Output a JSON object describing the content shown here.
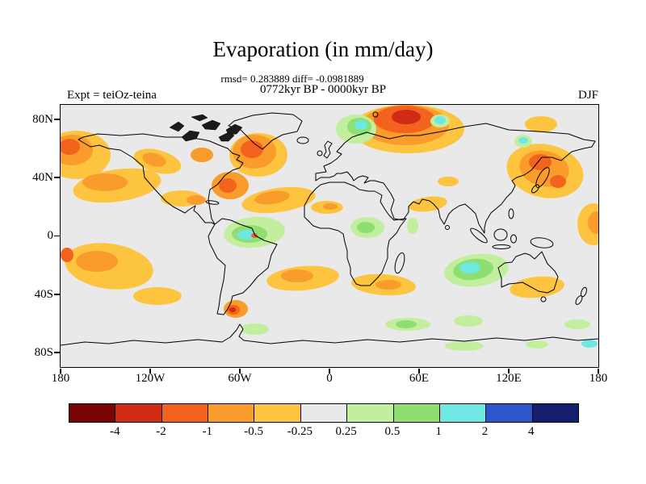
{
  "header": {
    "title": "Evaporation (in mm/day)",
    "stats": "rmsd= 0.283889 diff= -0.0981889",
    "subtitle": "0772kyr BP - 0000kyr BP",
    "experiment": "Expt = teiOz-teina",
    "season": "DJF"
  },
  "chart_data": {
    "type": "heatmap",
    "title": "Evaporation (in mm/day)",
    "subtitle": "0772kyr BP - 0000kyr BP",
    "rmsd": 0.283889,
    "diff": -0.0981889,
    "experiment": "teiOz-teina",
    "season": "DJF",
    "units": "mm/day",
    "projection": "equirectangular world map",
    "lat_range": [
      -90,
      90
    ],
    "lon_range": [
      -180,
      180
    ],
    "lat_ticks": [
      "80N",
      "40N",
      "0",
      "40S",
      "80S"
    ],
    "lon_ticks": [
      "180",
      "120W",
      "60W",
      "0",
      "60E",
      "120E",
      "180"
    ],
    "map_background": "#e9e9e9",
    "coastline_color": "#000000",
    "colorbar": {
      "levels": [
        -4,
        -2,
        -1,
        -0.5,
        -0.25,
        0.25,
        0.5,
        1,
        2,
        4
      ],
      "labels": [
        "-4",
        "-2",
        "-1",
        "-0.5",
        "-0.25",
        "0.25",
        "0.5",
        "1",
        "2",
        "4"
      ],
      "colors": [
        "#7a0403",
        "#cf2b16",
        "#f4631e",
        "#fa9c2b",
        "#fdc53f",
        "#e9e9e9",
        "#c2ef9e",
        "#8ede71",
        "#6fe7e3",
        "#2f55cc",
        "#151f6d"
      ]
    },
    "features": [
      {
        "region": "Norwegian Sea / North Atlantic",
        "anomaly": "strong negative, -1 to -4 mm/day"
      },
      {
        "region": "South of Greenland",
        "anomaly": "negative, -0.5 to -2 mm/day"
      },
      {
        "region": "US East Coast / western Atlantic",
        "anomaly": "negative, -0.5 to -2 mm/day"
      },
      {
        "region": "North Pacific",
        "anomaly": "negative, -0.25 to -1 mm/day"
      },
      {
        "region": "Northwest Pacific near Japan",
        "anomaly": "negative, -0.5 to -2 mm/day"
      },
      {
        "region": "Equatorial Atlantic / northern South America",
        "anomaly": "positive, 0.25 to 2 mm/day"
      },
      {
        "region": "Central Africa",
        "anomaly": "positive, 0.25 to 1 mm/day"
      },
      {
        "region": "Southern Indian Ocean",
        "anomaly": "positive, 0.25 to 2 mm/day"
      },
      {
        "region": "Southern subtropical band",
        "anomaly": "negative, -0.25 to -1 mm/day"
      },
      {
        "region": "Southern Ocean near 60S",
        "anomaly": "positive patches, 0.25 to 1 mm/day"
      },
      {
        "region": "Chilean coast",
        "anomaly": "negative, -1 to -2 mm/day"
      }
    ]
  }
}
